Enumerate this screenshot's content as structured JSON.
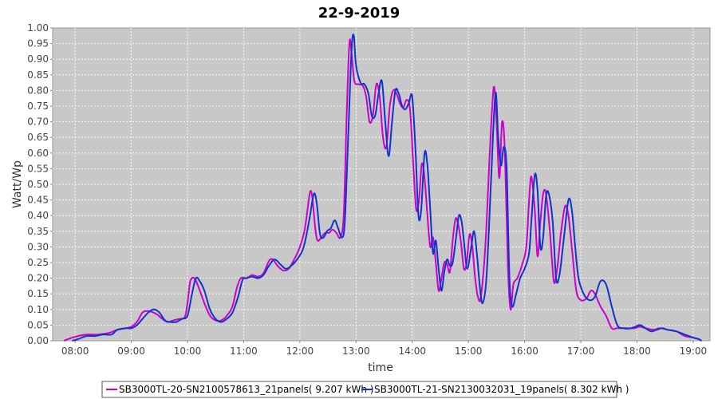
{
  "chart_data": {
    "type": "line",
    "title": "22-9-2019",
    "xlabel": "time",
    "ylabel": "Watt/Wp",
    "xlim": [
      7.6,
      19.3
    ],
    "ylim": [
      0,
      1.0
    ],
    "x_ticks": [
      {
        "value": 8,
        "label": "08:00"
      },
      {
        "value": 9,
        "label": "09:00"
      },
      {
        "value": 10,
        "label": "10:00"
      },
      {
        "value": 11,
        "label": "11:00"
      },
      {
        "value": 12,
        "label": "12:00"
      },
      {
        "value": 13,
        "label": "13:00"
      },
      {
        "value": 14,
        "label": "14:00"
      },
      {
        "value": 15,
        "label": "15:00"
      },
      {
        "value": 16,
        "label": "16:00"
      },
      {
        "value": 17,
        "label": "17:00"
      },
      {
        "value": 18,
        "label": "18:00"
      },
      {
        "value": 19,
        "label": "19:00"
      }
    ],
    "y_ticks": [
      "0.00",
      "0.05",
      "0.10",
      "0.15",
      "0.20",
      "0.25",
      "0.30",
      "0.35",
      "0.40",
      "0.45",
      "0.50",
      "0.55",
      "0.60",
      "0.65",
      "0.70",
      "0.75",
      "0.80",
      "0.85",
      "0.90",
      "0.95",
      "1.00"
    ],
    "grid": true,
    "legend_position": "bottom",
    "plot_background": "#c8c8c8",
    "series": [
      {
        "name": "SB3000TL-20-SN2100578613_21panels( 9.207 kWh )",
        "color": "#cc00cc",
        "points": [
          [
            7.8,
            0.0
          ],
          [
            7.95,
            0.01
          ],
          [
            8.05,
            0.015
          ],
          [
            8.2,
            0.02
          ],
          [
            8.4,
            0.02
          ],
          [
            8.6,
            0.025
          ],
          [
            8.75,
            0.035
          ],
          [
            8.9,
            0.04
          ],
          [
            9.0,
            0.045
          ],
          [
            9.1,
            0.06
          ],
          [
            9.2,
            0.09
          ],
          [
            9.3,
            0.095
          ],
          [
            9.45,
            0.085
          ],
          [
            9.55,
            0.07
          ],
          [
            9.65,
            0.06
          ],
          [
            9.75,
            0.065
          ],
          [
            9.85,
            0.07
          ],
          [
            9.95,
            0.075
          ],
          [
            10.0,
            0.12
          ],
          [
            10.05,
            0.19
          ],
          [
            10.12,
            0.2
          ],
          [
            10.2,
            0.17
          ],
          [
            10.3,
            0.12
          ],
          [
            10.4,
            0.08
          ],
          [
            10.5,
            0.065
          ],
          [
            10.6,
            0.065
          ],
          [
            10.7,
            0.08
          ],
          [
            10.8,
            0.11
          ],
          [
            10.88,
            0.17
          ],
          [
            10.95,
            0.2
          ],
          [
            11.05,
            0.2
          ],
          [
            11.15,
            0.21
          ],
          [
            11.25,
            0.205
          ],
          [
            11.35,
            0.215
          ],
          [
            11.45,
            0.255
          ],
          [
            11.52,
            0.26
          ],
          [
            11.6,
            0.24
          ],
          [
            11.7,
            0.225
          ],
          [
            11.8,
            0.23
          ],
          [
            11.9,
            0.26
          ],
          [
            12.0,
            0.3
          ],
          [
            12.08,
            0.35
          ],
          [
            12.13,
            0.41
          ],
          [
            12.18,
            0.475
          ],
          [
            12.22,
            0.46
          ],
          [
            12.28,
            0.35
          ],
          [
            12.32,
            0.32
          ],
          [
            12.38,
            0.33
          ],
          [
            12.45,
            0.345
          ],
          [
            12.52,
            0.345
          ],
          [
            12.58,
            0.355
          ],
          [
            12.65,
            0.345
          ],
          [
            12.72,
            0.33
          ],
          [
            12.78,
            0.4
          ],
          [
            12.83,
            0.7
          ],
          [
            12.88,
            0.95
          ],
          [
            12.92,
            0.92
          ],
          [
            12.97,
            0.83
          ],
          [
            13.05,
            0.82
          ],
          [
            13.12,
            0.815
          ],
          [
            13.18,
            0.78
          ],
          [
            13.24,
            0.7
          ],
          [
            13.3,
            0.72
          ],
          [
            13.36,
            0.82
          ],
          [
            13.42,
            0.78
          ],
          [
            13.48,
            0.65
          ],
          [
            13.54,
            0.62
          ],
          [
            13.6,
            0.75
          ],
          [
            13.66,
            0.8
          ],
          [
            13.72,
            0.79
          ],
          [
            13.78,
            0.76
          ],
          [
            13.84,
            0.745
          ],
          [
            13.9,
            0.77
          ],
          [
            13.96,
            0.74
          ],
          [
            14.02,
            0.56
          ],
          [
            14.07,
            0.42
          ],
          [
            14.12,
            0.45
          ],
          [
            14.17,
            0.565
          ],
          [
            14.22,
            0.52
          ],
          [
            14.27,
            0.4
          ],
          [
            14.32,
            0.3
          ],
          [
            14.37,
            0.33
          ],
          [
            14.42,
            0.25
          ],
          [
            14.47,
            0.16
          ],
          [
            14.52,
            0.2
          ],
          [
            14.57,
            0.25
          ],
          [
            14.62,
            0.245
          ],
          [
            14.67,
            0.22
          ],
          [
            14.72,
            0.32
          ],
          [
            14.77,
            0.39
          ],
          [
            14.82,
            0.37
          ],
          [
            14.87,
            0.31
          ],
          [
            14.92,
            0.23
          ],
          [
            14.97,
            0.25
          ],
          [
            15.02,
            0.34
          ],
          [
            15.07,
            0.3
          ],
          [
            15.12,
            0.2
          ],
          [
            15.17,
            0.14
          ],
          [
            15.22,
            0.14
          ],
          [
            15.3,
            0.3
          ],
          [
            15.38,
            0.6
          ],
          [
            15.45,
            0.81
          ],
          [
            15.5,
            0.7
          ],
          [
            15.55,
            0.52
          ],
          [
            15.6,
            0.7
          ],
          [
            15.65,
            0.6
          ],
          [
            15.7,
            0.25
          ],
          [
            15.75,
            0.1
          ],
          [
            15.8,
            0.18
          ],
          [
            15.87,
            0.2
          ],
          [
            15.95,
            0.24
          ],
          [
            16.03,
            0.3
          ],
          [
            16.08,
            0.45
          ],
          [
            16.12,
            0.525
          ],
          [
            16.18,
            0.42
          ],
          [
            16.23,
            0.27
          ],
          [
            16.28,
            0.38
          ],
          [
            16.33,
            0.47
          ],
          [
            16.38,
            0.47
          ],
          [
            16.45,
            0.35
          ],
          [
            16.52,
            0.19
          ],
          [
            16.58,
            0.23
          ],
          [
            16.65,
            0.35
          ],
          [
            16.72,
            0.43
          ],
          [
            16.78,
            0.4
          ],
          [
            16.85,
            0.28
          ],
          [
            16.92,
            0.16
          ],
          [
            17.0,
            0.13
          ],
          [
            17.1,
            0.135
          ],
          [
            17.18,
            0.16
          ],
          [
            17.25,
            0.15
          ],
          [
            17.35,
            0.11
          ],
          [
            17.45,
            0.08
          ],
          [
            17.55,
            0.04
          ],
          [
            17.65,
            0.04
          ],
          [
            17.8,
            0.04
          ],
          [
            17.95,
            0.04
          ],
          [
            18.05,
            0.045
          ],
          [
            18.15,
            0.04
          ],
          [
            18.3,
            0.035
          ],
          [
            18.4,
            0.04
          ],
          [
            18.55,
            0.035
          ],
          [
            18.7,
            0.03
          ],
          [
            18.85,
            0.015
          ],
          [
            19.0,
            0.01
          ],
          [
            19.1,
            0.005
          ],
          [
            19.15,
            0.0
          ]
        ]
      },
      {
        "name": "SB3000TL-21-SN2130032031_19panels( 8.302 kWh )",
        "color": "#1133cc",
        "points": [
          [
            7.95,
            0.0
          ],
          [
            8.05,
            0.005
          ],
          [
            8.2,
            0.015
          ],
          [
            8.35,
            0.015
          ],
          [
            8.5,
            0.02
          ],
          [
            8.65,
            0.02
          ],
          [
            8.75,
            0.035
          ],
          [
            8.9,
            0.04
          ],
          [
            9.0,
            0.04
          ],
          [
            9.1,
            0.05
          ],
          [
            9.2,
            0.07
          ],
          [
            9.3,
            0.09
          ],
          [
            9.4,
            0.1
          ],
          [
            9.5,
            0.09
          ],
          [
            9.6,
            0.065
          ],
          [
            9.7,
            0.06
          ],
          [
            9.8,
            0.06
          ],
          [
            9.9,
            0.07
          ],
          [
            10.0,
            0.08
          ],
          [
            10.08,
            0.15
          ],
          [
            10.15,
            0.2
          ],
          [
            10.22,
            0.19
          ],
          [
            10.3,
            0.16
          ],
          [
            10.4,
            0.1
          ],
          [
            10.5,
            0.07
          ],
          [
            10.6,
            0.06
          ],
          [
            10.7,
            0.07
          ],
          [
            10.8,
            0.09
          ],
          [
            10.9,
            0.14
          ],
          [
            10.98,
            0.195
          ],
          [
            11.05,
            0.2
          ],
          [
            11.15,
            0.205
          ],
          [
            11.25,
            0.2
          ],
          [
            11.35,
            0.21
          ],
          [
            11.45,
            0.24
          ],
          [
            11.55,
            0.26
          ],
          [
            11.65,
            0.245
          ],
          [
            11.75,
            0.23
          ],
          [
            11.85,
            0.24
          ],
          [
            11.95,
            0.26
          ],
          [
            12.05,
            0.29
          ],
          [
            12.12,
            0.34
          ],
          [
            12.18,
            0.4
          ],
          [
            12.25,
            0.47
          ],
          [
            12.3,
            0.44
          ],
          [
            12.36,
            0.34
          ],
          [
            12.42,
            0.33
          ],
          [
            12.48,
            0.35
          ],
          [
            12.55,
            0.36
          ],
          [
            12.62,
            0.385
          ],
          [
            12.68,
            0.36
          ],
          [
            12.75,
            0.33
          ],
          [
            12.8,
            0.38
          ],
          [
            12.86,
            0.65
          ],
          [
            12.92,
            0.93
          ],
          [
            12.96,
            0.975
          ],
          [
            13.0,
            0.88
          ],
          [
            13.08,
            0.825
          ],
          [
            13.15,
            0.82
          ],
          [
            13.22,
            0.79
          ],
          [
            13.28,
            0.72
          ],
          [
            13.34,
            0.72
          ],
          [
            13.4,
            0.79
          ],
          [
            13.46,
            0.83
          ],
          [
            13.52,
            0.7
          ],
          [
            13.58,
            0.59
          ],
          [
            13.64,
            0.7
          ],
          [
            13.7,
            0.8
          ],
          [
            13.76,
            0.79
          ],
          [
            13.82,
            0.75
          ],
          [
            13.88,
            0.74
          ],
          [
            13.94,
            0.76
          ],
          [
            14.0,
            0.78
          ],
          [
            14.06,
            0.6
          ],
          [
            14.11,
            0.4
          ],
          [
            14.16,
            0.42
          ],
          [
            14.22,
            0.6
          ],
          [
            14.27,
            0.56
          ],
          [
            14.32,
            0.42
          ],
          [
            14.37,
            0.28
          ],
          [
            14.42,
            0.32
          ],
          [
            14.47,
            0.23
          ],
          [
            14.52,
            0.16
          ],
          [
            14.57,
            0.22
          ],
          [
            14.62,
            0.26
          ],
          [
            14.67,
            0.24
          ],
          [
            14.72,
            0.25
          ],
          [
            14.78,
            0.33
          ],
          [
            14.83,
            0.4
          ],
          [
            14.88,
            0.38
          ],
          [
            14.93,
            0.3
          ],
          [
            14.98,
            0.23
          ],
          [
            15.05,
            0.3
          ],
          [
            15.1,
            0.35
          ],
          [
            15.15,
            0.28
          ],
          [
            15.2,
            0.18
          ],
          [
            15.25,
            0.12
          ],
          [
            15.32,
            0.2
          ],
          [
            15.4,
            0.5
          ],
          [
            15.48,
            0.79
          ],
          [
            15.53,
            0.65
          ],
          [
            15.58,
            0.56
          ],
          [
            15.63,
            0.62
          ],
          [
            15.68,
            0.55
          ],
          [
            15.73,
            0.2
          ],
          [
            15.78,
            0.11
          ],
          [
            15.85,
            0.15
          ],
          [
            15.92,
            0.2
          ],
          [
            16.0,
            0.23
          ],
          [
            16.08,
            0.28
          ],
          [
            16.12,
            0.38
          ],
          [
            16.18,
            0.53
          ],
          [
            16.23,
            0.48
          ],
          [
            16.28,
            0.3
          ],
          [
            16.33,
            0.33
          ],
          [
            16.38,
            0.46
          ],
          [
            16.43,
            0.47
          ],
          [
            16.5,
            0.38
          ],
          [
            16.56,
            0.2
          ],
          [
            16.62,
            0.21
          ],
          [
            16.7,
            0.33
          ],
          [
            16.78,
            0.45
          ],
          [
            16.84,
            0.42
          ],
          [
            16.9,
            0.3
          ],
          [
            16.96,
            0.2
          ],
          [
            17.05,
            0.15
          ],
          [
            17.15,
            0.13
          ],
          [
            17.25,
            0.14
          ],
          [
            17.35,
            0.19
          ],
          [
            17.45,
            0.18
          ],
          [
            17.55,
            0.11
          ],
          [
            17.65,
            0.05
          ],
          [
            17.75,
            0.04
          ],
          [
            17.9,
            0.04
          ],
          [
            18.05,
            0.05
          ],
          [
            18.15,
            0.04
          ],
          [
            18.25,
            0.03
          ],
          [
            18.35,
            0.035
          ],
          [
            18.45,
            0.04
          ],
          [
            18.55,
            0.035
          ],
          [
            18.7,
            0.03
          ],
          [
            18.85,
            0.02
          ],
          [
            19.0,
            0.01
          ],
          [
            19.1,
            0.005
          ],
          [
            19.15,
            0.0
          ]
        ]
      }
    ]
  }
}
